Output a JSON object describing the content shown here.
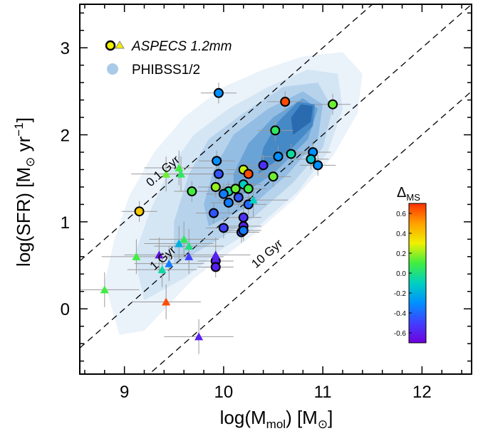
{
  "chart_data": {
    "type": "scatter",
    "xlabel_parts": {
      "main": "log(M",
      "sub": "mol",
      "tail": ") [M",
      "sub2": "⊙",
      "end": "]"
    },
    "ylabel_parts": {
      "main": "log(SFR) [M",
      "sub": "⊙",
      "mid": " yr",
      "sup": "−1",
      "end": "]"
    },
    "xlim": [
      8.55,
      12.5
    ],
    "ylim": [
      -0.75,
      3.5
    ],
    "x_ticks": [
      9,
      10,
      11,
      12
    ],
    "y_ticks": [
      0,
      1,
      2,
      3
    ],
    "depletion_lines": [
      {
        "label": "0.1 Gyr",
        "offset": -8.0
      },
      {
        "label": "1 Gyr",
        "offset": -9.0
      },
      {
        "label": "10 Gyr",
        "offset": -10.0
      }
    ],
    "legend": {
      "position": "top-left",
      "entries": [
        {
          "label": "ASPECS 1.2mm",
          "symbol": "circle+triangle"
        },
        {
          "label": "PHIBSS1/2",
          "symbol": "light-blue-disc"
        }
      ]
    },
    "colorbar": {
      "label_main": "Δ",
      "label_sub": "MS",
      "range": [
        -0.7,
        0.7
      ],
      "ticks": [
        "0.6",
        "0.4",
        "0.2",
        "0.0",
        "-0.2",
        "-0.4",
        "-0.6"
      ],
      "tick_values": [
        0.6,
        0.4,
        0.2,
        0.0,
        -0.2,
        -0.4,
        -0.6
      ],
      "colors": [
        "#ff3000",
        "#ffa000",
        "#f0f000",
        "#40ee40",
        "#00d0c0",
        "#0090ff",
        "#4040ff",
        "#7000dd"
      ]
    },
    "density_levels": [
      {
        "color": "#eaf2fa",
        "polygon": [
          [
            8.95,
            -0.3
          ],
          [
            9.2,
            -0.25
          ],
          [
            9.45,
            0.05
          ],
          [
            9.7,
            0.35
          ],
          [
            10.0,
            0.6
          ],
          [
            10.3,
            0.85
          ],
          [
            10.7,
            1.25
          ],
          [
            11.1,
            1.75
          ],
          [
            11.35,
            2.25
          ],
          [
            11.4,
            2.7
          ],
          [
            11.2,
            2.95
          ],
          [
            10.8,
            2.9
          ],
          [
            10.4,
            2.75
          ],
          [
            10.0,
            2.55
          ],
          [
            9.6,
            2.2
          ],
          [
            9.3,
            1.8
          ],
          [
            9.05,
            1.3
          ],
          [
            8.9,
            0.8
          ],
          [
            8.8,
            0.3
          ]
        ]
      },
      {
        "color": "#d4e5f4",
        "polygon": [
          [
            9.2,
            0.1
          ],
          [
            9.6,
            0.35
          ],
          [
            10.0,
            0.7
          ],
          [
            10.35,
            0.95
          ],
          [
            10.75,
            1.35
          ],
          [
            11.05,
            1.8
          ],
          [
            11.2,
            2.3
          ],
          [
            11.15,
            2.7
          ],
          [
            10.85,
            2.75
          ],
          [
            10.45,
            2.55
          ],
          [
            10.05,
            2.3
          ],
          [
            9.7,
            2.0
          ],
          [
            9.45,
            1.6
          ],
          [
            9.25,
            1.1
          ],
          [
            9.1,
            0.6
          ]
        ]
      },
      {
        "color": "#b7d3ec",
        "polygon": [
          [
            9.5,
            0.5
          ],
          [
            9.95,
            0.8
          ],
          [
            10.3,
            1.05
          ],
          [
            10.7,
            1.45
          ],
          [
            11.0,
            1.85
          ],
          [
            11.1,
            2.3
          ],
          [
            10.95,
            2.6
          ],
          [
            10.6,
            2.55
          ],
          [
            10.2,
            2.25
          ],
          [
            9.85,
            1.95
          ],
          [
            9.65,
            1.55
          ],
          [
            9.5,
            1.0
          ]
        ]
      },
      {
        "color": "#93bde3",
        "polygon": [
          [
            9.85,
            0.95
          ],
          [
            10.3,
            1.2
          ],
          [
            10.65,
            1.55
          ],
          [
            10.95,
            1.95
          ],
          [
            11.0,
            2.35
          ],
          [
            10.8,
            2.5
          ],
          [
            10.45,
            2.3
          ],
          [
            10.1,
            2.0
          ],
          [
            9.9,
            1.6
          ],
          [
            9.8,
            1.2
          ]
        ]
      },
      {
        "color": "#6aa3d6",
        "polygon": [
          [
            10.1,
            1.25
          ],
          [
            10.5,
            1.55
          ],
          [
            10.85,
            1.95
          ],
          [
            10.95,
            2.3
          ],
          [
            10.8,
            2.42
          ],
          [
            10.5,
            2.2
          ],
          [
            10.25,
            1.9
          ],
          [
            10.1,
            1.55
          ]
        ]
      },
      {
        "color": "#4589c7",
        "polygon": [
          [
            10.35,
            1.55
          ],
          [
            10.65,
            1.8
          ],
          [
            10.9,
            2.1
          ],
          [
            10.92,
            2.35
          ],
          [
            10.75,
            2.38
          ],
          [
            10.55,
            2.15
          ],
          [
            10.4,
            1.85
          ]
        ]
      },
      {
        "color": "#2a6bb0",
        "polygon": [
          [
            10.7,
            2.0
          ],
          [
            10.88,
            2.15
          ],
          [
            10.9,
            2.33
          ],
          [
            10.78,
            2.35
          ],
          [
            10.68,
            2.2
          ]
        ]
      }
    ],
    "series": [
      {
        "marker": "circle",
        "points": [
          {
            "x": 9.95,
            "y": 2.48,
            "d": -0.3
          },
          {
            "x": 10.62,
            "y": 2.38,
            "d": 0.65
          },
          {
            "x": 11.1,
            "y": 2.35,
            "d": 0.15
          },
          {
            "x": 10.52,
            "y": 2.05,
            "d": 0.05
          },
          {
            "x": 10.9,
            "y": 1.8,
            "d": -0.3
          },
          {
            "x": 10.68,
            "y": 1.78,
            "d": -0.05
          },
          {
            "x": 10.55,
            "y": 1.75,
            "d": -0.3
          },
          {
            "x": 10.88,
            "y": 1.72,
            "d": -0.15
          },
          {
            "x": 10.95,
            "y": 1.65,
            "d": -0.3
          },
          {
            "x": 9.93,
            "y": 1.7,
            "d": -0.3
          },
          {
            "x": 10.2,
            "y": 1.6,
            "d": 0.25
          },
          {
            "x": 10.25,
            "y": 1.55,
            "d": 0.65
          },
          {
            "x": 10.4,
            "y": 1.65,
            "d": -0.55
          },
          {
            "x": 9.95,
            "y": 1.55,
            "d": -0.45
          },
          {
            "x": 10.2,
            "y": 1.43,
            "d": -0.1
          },
          {
            "x": 10.5,
            "y": 1.52,
            "d": 0.15
          },
          {
            "x": 9.92,
            "y": 1.4,
            "d": 0.2
          },
          {
            "x": 10.05,
            "y": 1.35,
            "d": -0.05
          },
          {
            "x": 10.12,
            "y": 1.38,
            "d": 0.15
          },
          {
            "x": 10.25,
            "y": 1.38,
            "d": 0.1
          },
          {
            "x": 9.68,
            "y": 1.35,
            "d": 0.1
          },
          {
            "x": 10.0,
            "y": 1.32,
            "d": -0.35
          },
          {
            "x": 10.15,
            "y": 1.28,
            "d": -0.45
          },
          {
            "x": 10.25,
            "y": 1.2,
            "d": -0.4
          },
          {
            "x": 10.05,
            "y": 1.22,
            "d": -0.35
          },
          {
            "x": 9.15,
            "y": 1.12,
            "d": 0.4
          },
          {
            "x": 9.9,
            "y": 1.1,
            "d": -0.45
          },
          {
            "x": 10.2,
            "y": 1.05,
            "d": -0.55
          },
          {
            "x": 10.2,
            "y": 0.95,
            "d": -0.6
          },
          {
            "x": 10.0,
            "y": 0.93,
            "d": -0.5
          },
          {
            "x": 10.18,
            "y": 0.88,
            "d": -0.45
          },
          {
            "x": 10.2,
            "y": 0.9,
            "d": -0.35
          },
          {
            "x": 9.92,
            "y": 0.55,
            "d": -0.6
          },
          {
            "x": 9.92,
            "y": 0.48,
            "d": -0.6
          }
        ]
      },
      {
        "marker": "triangle",
        "points": [
          {
            "x": 9.42,
            "y": 1.55,
            "d": 0.15
          },
          {
            "x": 9.55,
            "y": 1.62,
            "d": 0.1
          },
          {
            "x": 9.57,
            "y": 1.55,
            "d": 0.05
          },
          {
            "x": 10.3,
            "y": 1.25,
            "d": -0.1
          },
          {
            "x": 9.6,
            "y": 0.8,
            "d": 0.05
          },
          {
            "x": 9.55,
            "y": 0.75,
            "d": -0.2
          },
          {
            "x": 9.65,
            "y": 0.72,
            "d": 0.0
          },
          {
            "x": 9.12,
            "y": 0.6,
            "d": 0.1
          },
          {
            "x": 9.35,
            "y": 0.62,
            "d": -0.65
          },
          {
            "x": 9.65,
            "y": 0.6,
            "d": -0.5
          },
          {
            "x": 9.45,
            "y": 0.52,
            "d": -0.35
          },
          {
            "x": 9.92,
            "y": 0.62,
            "d": -0.6
          },
          {
            "x": 9.38,
            "y": 0.45,
            "d": -0.05
          },
          {
            "x": 8.8,
            "y": 0.22,
            "d": 0.1
          },
          {
            "x": 9.42,
            "y": 0.08,
            "d": 0.65
          },
          {
            "x": 9.75,
            "y": -0.32,
            "d": -0.6
          }
        ]
      }
    ]
  }
}
